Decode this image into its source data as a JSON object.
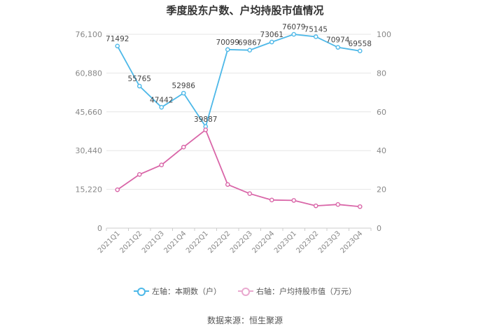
{
  "chart_data": {
    "type": "line",
    "title": "季度股东户数、户均持股市值情况",
    "categories": [
      "2021Q1",
      "2021Q2",
      "2021Q3",
      "2021Q4",
      "2022Q1",
      "2022Q2",
      "2022Q3",
      "2022Q4",
      "2023Q1",
      "2023Q2",
      "2023Q3",
      "2023Q4"
    ],
    "series": [
      {
        "name": "左轴：本期数（户）",
        "axis": "left",
        "color": "#4db8e8",
        "values": [
          71492,
          55765,
          47442,
          52986,
          39887,
          70099,
          69867,
          73061,
          76079,
          75145,
          70974,
          69558
        ],
        "data_labels": [
          "71492",
          "55765",
          "47442",
          "52986",
          "39887",
          "70099",
          "69867",
          "73061",
          "76079",
          "75145",
          "70974",
          "69558"
        ]
      },
      {
        "name": "右轴：户均持股市值（万元）",
        "axis": "right",
        "color": "#d966a8",
        "values": [
          19.8,
          27.7,
          32.6,
          41.8,
          50.7,
          22.5,
          17.8,
          14.5,
          14.3,
          11.5,
          12.2,
          11.1
        ]
      }
    ],
    "y_left": {
      "ticks": [
        "0",
        "15,220",
        "30,440",
        "45,660",
        "60,880",
        "76,100"
      ],
      "ylim": [
        0,
        76100
      ]
    },
    "y_right": {
      "ticks": [
        "0",
        "20",
        "40",
        "60",
        "80",
        "100"
      ],
      "ylim": [
        0,
        100
      ]
    },
    "grid": true,
    "legend_position": "bottom"
  },
  "source": "数据来源：恒生聚源"
}
